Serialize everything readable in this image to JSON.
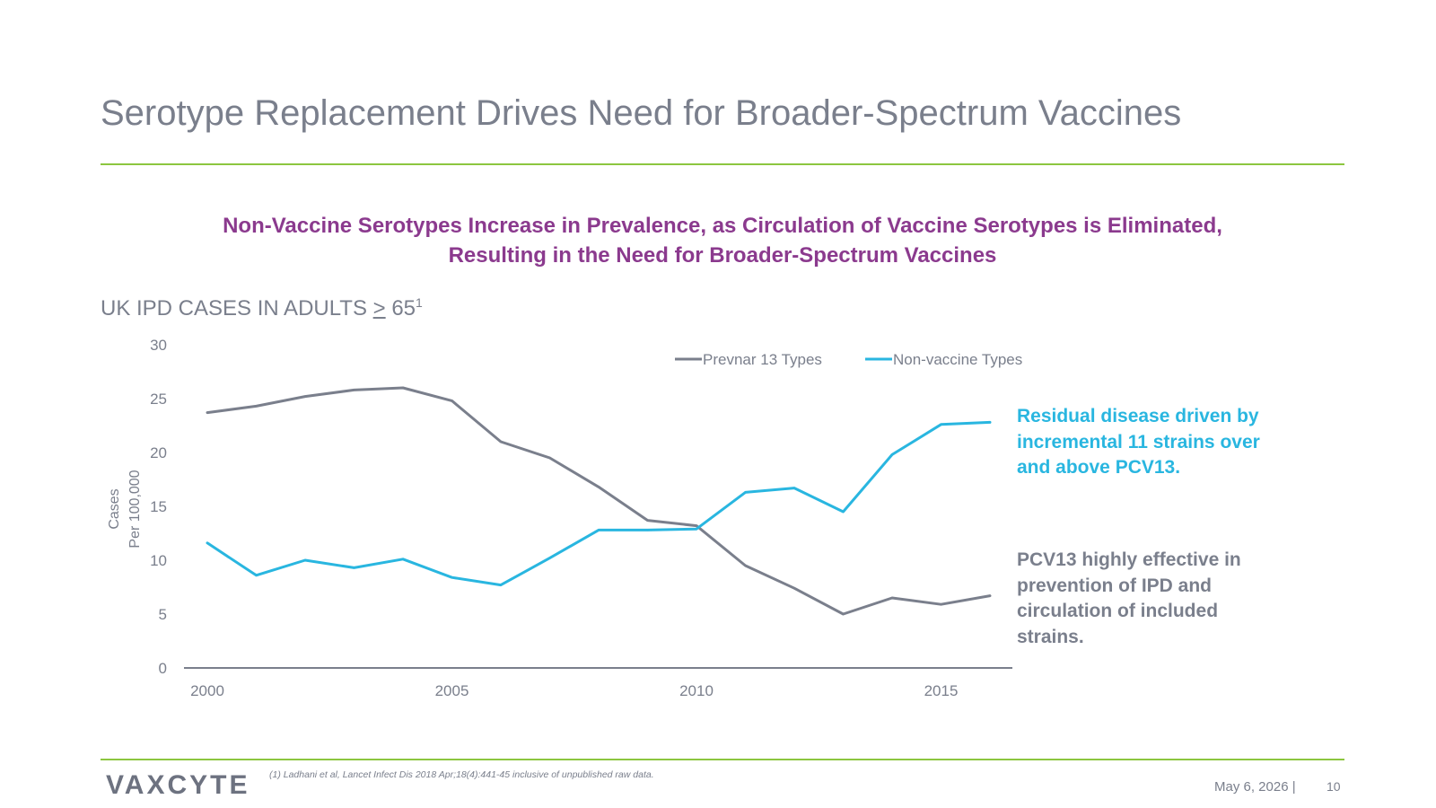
{
  "slide": {
    "title": "Serotype Replacement Drives Need for Broader-Spectrum Vaccines",
    "subtitle_line1": "Non-Vaccine Serotypes Increase in Prevalence, as Circulation of Vaccine Serotypes is Eliminated,",
    "subtitle_line2": "Resulting in the Need for Broader-Spectrum Vaccines",
    "section_label_prefix": "UK IPD CASES IN ADULTS ",
    "section_label_ge": ">",
    "section_label_number": " 65",
    "section_label_sup": "1",
    "annotation_blue": "Residual disease driven by incremental 11 strains over and above PCV13.",
    "annotation_gray": "PCV13 highly effective in prevention of IPD and circulation of included strains.",
    "footnote": "(1)  Ladhani et al, Lancet Infect Dis 2018 Apr;18(4):441-45 inclusive of unpublished raw data.",
    "logo": "VAXCYTE",
    "date": "May 6, 2026  |",
    "page_number": "10"
  },
  "chart_data": {
    "type": "line",
    "title": "",
    "ylabel_line1": "Cases",
    "ylabel_line2": "Per 100,000",
    "xlabel": "",
    "x": [
      2000,
      2001,
      2002,
      2003,
      2004,
      2005,
      2006,
      2007,
      2008,
      2009,
      2010,
      2011,
      2012,
      2013,
      2014,
      2015,
      2016
    ],
    "xticks": [
      "2000",
      "2005",
      "2010",
      "2015"
    ],
    "yticks": [
      "0",
      "5",
      "10",
      "15",
      "20",
      "25",
      "30"
    ],
    "xlim": [
      2000,
      2016
    ],
    "ylim": [
      0,
      30
    ],
    "grid": false,
    "legend_position": "top",
    "series": [
      {
        "name": "Prevnar 13 Types",
        "color": "#7a7f8c",
        "values": [
          23.7,
          24.3,
          25.2,
          25.8,
          26.0,
          24.8,
          21.0,
          19.5,
          16.8,
          13.7,
          13.2,
          9.5,
          7.4,
          5.0,
          6.5,
          5.9,
          6.7
        ]
      },
      {
        "name": "Non-vaccine Types",
        "color": "#29b6e0",
        "values": [
          11.6,
          8.6,
          10.0,
          9.3,
          10.1,
          8.4,
          7.7,
          10.2,
          12.8,
          12.8,
          12.9,
          16.3,
          16.7,
          14.5,
          19.8,
          22.6,
          22.8
        ]
      }
    ]
  }
}
